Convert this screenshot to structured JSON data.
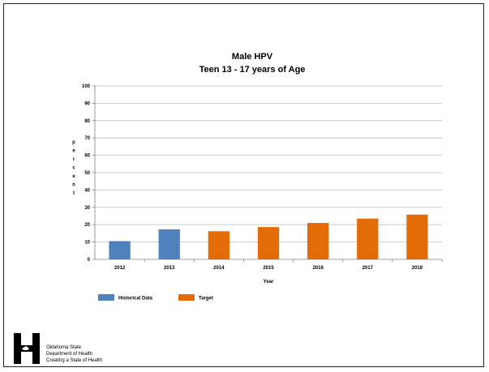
{
  "chart_data": {
    "type": "bar",
    "title": "Male HPV",
    "subtitle": "Teen 13 - 17 years of Age",
    "xlabel": "Year",
    "ylabel": "Percent",
    "ylim": [
      0,
      100
    ],
    "yticks": [
      0,
      10,
      20,
      30,
      40,
      50,
      60,
      70,
      80,
      90,
      100
    ],
    "categories": [
      "2012",
      "2013",
      "2014",
      "2015",
      "2016",
      "2017",
      "2018"
    ],
    "series": [
      {
        "name": "Historical Data",
        "color": "#4f81bd",
        "values": [
          10.5,
          17.3,
          null,
          null,
          null,
          null,
          null
        ]
      },
      {
        "name": "Target",
        "color": "#e36c09",
        "values": [
          null,
          null,
          16.2,
          18.6,
          21.0,
          23.5,
          25.8
        ]
      }
    ],
    "grid": true,
    "legend_position": "bottom-left"
  },
  "logo": {
    "lines": [
      "Oklahoma State",
      "Department of Health",
      "Creating a State of Health"
    ]
  }
}
